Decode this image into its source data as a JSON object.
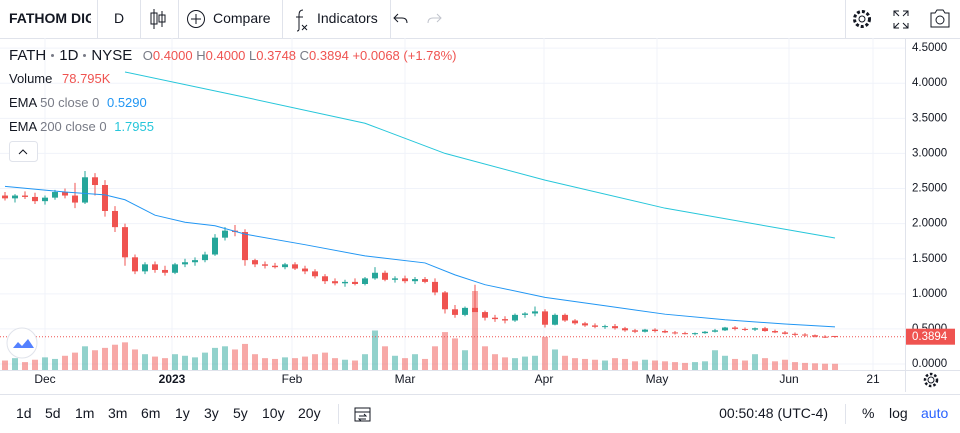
{
  "toolbar": {
    "symbol": "FATHOM DIG",
    "interval": "D",
    "compare": "Compare",
    "indicators": "Indicators"
  },
  "legend": {
    "symbol": "FATH",
    "interval": "1D",
    "exchange": "NYSE",
    "open_label": "O",
    "open": "0.4000",
    "high_label": "H",
    "high": "0.4000",
    "low_label": "L",
    "low": "0.3748",
    "close_label": "C",
    "close": "0.3894",
    "change": "+0.0068 (+1.78%)",
    "volume_label": "Volume",
    "volume": "78.795K"
  },
  "chart_data": {
    "type": "candlestick",
    "up_color": "#26a69a",
    "down_color": "#ef5350",
    "open": [
      2.4,
      2.36,
      2.4,
      2.38,
      2.32,
      2.37,
      2.45,
      2.4,
      2.3,
      2.66,
      2.55,
      2.18,
      1.95,
      1.52,
      1.32,
      1.42,
      1.34,
      1.3,
      1.42,
      1.45,
      1.48,
      1.56,
      1.8,
      1.9,
      1.88,
      1.48,
      1.42,
      1.4,
      1.38,
      1.42,
      1.36,
      1.32,
      1.25,
      1.18,
      1.15,
      1.17,
      1.14,
      1.22,
      1.3,
      1.2,
      1.22,
      1.18,
      1.21,
      1.17,
      1.02,
      0.78,
      0.7,
      0.8,
      0.74,
      0.66,
      0.64,
      0.62,
      0.7,
      0.72,
      0.75,
      0.56,
      0.7,
      0.62,
      0.58,
      0.55,
      0.53,
      0.54,
      0.51,
      0.48,
      0.46,
      0.49,
      0.47,
      0.45,
      0.44,
      0.43,
      0.44,
      0.46,
      0.48,
      0.52,
      0.5,
      0.49,
      0.51,
      0.47,
      0.45,
      0.43,
      0.42,
      0.41,
      0.39,
      0.4
    ],
    "high": [
      2.45,
      2.42,
      2.46,
      2.44,
      2.4,
      2.48,
      2.5,
      2.58,
      2.75,
      2.72,
      2.62,
      2.25,
      2.0,
      1.56,
      1.45,
      1.46,
      1.4,
      1.44,
      1.5,
      1.52,
      1.6,
      1.85,
      1.95,
      1.98,
      1.92,
      1.5,
      1.46,
      1.44,
      1.44,
      1.45,
      1.4,
      1.35,
      1.28,
      1.22,
      1.2,
      1.22,
      1.24,
      1.38,
      1.33,
      1.25,
      1.26,
      1.24,
      1.24,
      1.22,
      1.04,
      0.84,
      0.82,
      1.13,
      0.76,
      0.7,
      0.68,
      0.72,
      0.74,
      0.82,
      0.78,
      0.72,
      0.72,
      0.64,
      0.6,
      0.58,
      0.56,
      0.57,
      0.53,
      0.5,
      0.5,
      0.51,
      0.49,
      0.47,
      0.46,
      0.45,
      0.47,
      0.5,
      0.53,
      0.54,
      0.52,
      0.52,
      0.53,
      0.49,
      0.47,
      0.45,
      0.44,
      0.42,
      0.41,
      0.4
    ],
    "low": [
      2.33,
      2.3,
      2.35,
      2.28,
      2.27,
      2.34,
      2.36,
      2.22,
      2.28,
      2.4,
      2.1,
      1.88,
      1.4,
      1.28,
      1.28,
      1.3,
      1.26,
      1.28,
      1.38,
      1.4,
      1.45,
      1.54,
      1.76,
      1.82,
      1.4,
      1.38,
      1.36,
      1.36,
      1.35,
      1.34,
      1.28,
      1.22,
      1.14,
      1.12,
      1.1,
      1.12,
      1.12,
      1.2,
      1.18,
      1.16,
      1.15,
      1.14,
      1.15,
      0.98,
      0.72,
      0.66,
      0.68,
      0.76,
      0.62,
      0.6,
      0.58,
      0.6,
      0.66,
      0.68,
      0.52,
      0.55,
      0.6,
      0.56,
      0.53,
      0.51,
      0.5,
      0.49,
      0.46,
      0.44,
      0.45,
      0.45,
      0.44,
      0.42,
      0.42,
      0.41,
      0.43,
      0.45,
      0.47,
      0.48,
      0.47,
      0.47,
      0.46,
      0.44,
      0.42,
      0.4,
      0.39,
      0.38,
      0.37,
      0.3748
    ],
    "close": [
      2.36,
      2.4,
      2.38,
      2.32,
      2.37,
      2.45,
      2.4,
      2.3,
      2.66,
      2.55,
      2.18,
      1.95,
      1.52,
      1.32,
      1.42,
      1.34,
      1.3,
      1.42,
      1.45,
      1.48,
      1.56,
      1.8,
      1.9,
      1.88,
      1.48,
      1.42,
      1.4,
      1.38,
      1.42,
      1.36,
      1.32,
      1.25,
      1.18,
      1.15,
      1.17,
      1.14,
      1.22,
      1.3,
      1.2,
      1.22,
      1.18,
      1.21,
      1.17,
      1.02,
      0.78,
      0.7,
      0.8,
      0.74,
      0.66,
      0.64,
      0.62,
      0.7,
      0.72,
      0.75,
      0.56,
      0.7,
      0.62,
      0.58,
      0.55,
      0.53,
      0.54,
      0.51,
      0.48,
      0.46,
      0.49,
      0.47,
      0.45,
      0.44,
      0.43,
      0.44,
      0.46,
      0.48,
      0.52,
      0.5,
      0.49,
      0.51,
      0.47,
      0.45,
      0.43,
      0.42,
      0.41,
      0.39,
      0.38,
      0.3894
    ],
    "volume": [
      120000,
      150000,
      100000,
      130000,
      160000,
      140000,
      180000,
      220000,
      300000,
      250000,
      280000,
      320000,
      350000,
      260000,
      200000,
      170000,
      150000,
      200000,
      180000,
      160000,
      220000,
      280000,
      300000,
      260000,
      330000,
      200000,
      150000,
      140000,
      160000,
      150000,
      170000,
      200000,
      220000,
      150000,
      130000,
      120000,
      200000,
      500000,
      300000,
      180000,
      150000,
      200000,
      140000,
      300000,
      480000,
      400000,
      250000,
      1000000,
      300000,
      200000,
      160000,
      150000,
      170000,
      180000,
      420000,
      260000,
      180000,
      150000,
      140000,
      130000,
      120000,
      150000,
      140000,
      110000,
      130000,
      120000,
      110000,
      100000,
      90000,
      100000,
      110000,
      250000,
      180000,
      140000,
      120000,
      200000,
      150000,
      110000,
      130000,
      100000,
      90000,
      85000,
      80000,
      78795
    ],
    "series": [
      {
        "name": "EMA",
        "params": "50 close 0",
        "value_label": "0.5290",
        "color": "#2196f3",
        "x": [
          0,
          6,
          10,
          12,
          15,
          18,
          21,
          24,
          30,
          36,
          42,
          45,
          48,
          54,
          60,
          66,
          72,
          78,
          83
        ],
        "values": [
          2.53,
          2.45,
          2.41,
          2.34,
          2.12,
          2.02,
          1.97,
          1.85,
          1.7,
          1.54,
          1.44,
          1.27,
          1.13,
          0.95,
          0.83,
          0.71,
          0.63,
          0.57,
          0.529
        ]
      },
      {
        "name": "EMA",
        "params": "200 close 0",
        "value_label": "1.7955",
        "color": "#26c6da",
        "x": [
          12,
          24,
          36,
          44,
          54,
          66,
          78,
          83
        ],
        "values": [
          4.16,
          3.8,
          3.43,
          3.0,
          2.62,
          2.22,
          1.92,
          1.795
        ]
      }
    ],
    "last_price": {
      "value": 0.3894,
      "label": "0.3894"
    },
    "xlim": [
      -0.5,
      90
    ],
    "ylim": [
      -0.085,
      4.644
    ],
    "xticks": [
      {
        "value": 4,
        "label": "Dec"
      },
      {
        "value": 16.7,
        "label": "2023"
      },
      {
        "value": 28.7,
        "label": "Feb"
      },
      {
        "value": 40,
        "label": "Mar"
      },
      {
        "value": 53.9,
        "label": "Apr"
      },
      {
        "value": 65.2,
        "label": "May"
      },
      {
        "value": 78.4,
        "label": "Jun"
      },
      {
        "value": 86.8,
        "label": "21"
      }
    ],
    "yticks": [
      {
        "value": 0,
        "label": "0.0000"
      },
      {
        "value": 0.5,
        "label": "0.5000"
      },
      {
        "value": 1,
        "label": "1.0000"
      },
      {
        "value": 1.5,
        "label": "1.5000"
      },
      {
        "value": 2,
        "label": "2.0000"
      },
      {
        "value": 2.5,
        "label": "2.5000"
      },
      {
        "value": 3,
        "label": "3.0000"
      },
      {
        "value": 3.5,
        "label": "3.5000"
      },
      {
        "value": 4,
        "label": "4.0000"
      },
      {
        "value": 4.5,
        "label": "4.5000"
      }
    ],
    "grid": true
  },
  "bottom_bar": {
    "ranges": [
      "1d",
      "5d",
      "1m",
      "3m",
      "6m",
      "1y",
      "3y",
      "5y",
      "10y",
      "20y"
    ],
    "time": "00:50:48 (UTC-4)",
    "percent": "%",
    "log": "log",
    "auto": "auto"
  }
}
